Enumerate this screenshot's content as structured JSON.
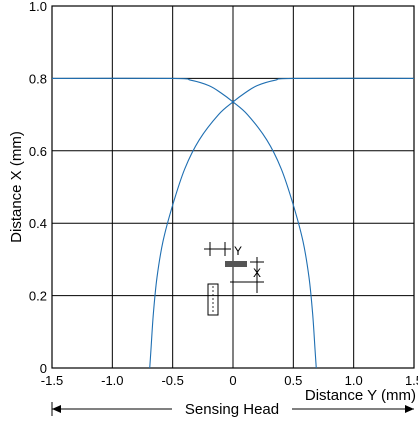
{
  "chart_data": {
    "type": "line",
    "title": "",
    "xlabel": "Distance Y (mm)",
    "ylabel": "Distance X (mm)",
    "xlim": [
      -1.5,
      1.5
    ],
    "ylim": [
      0,
      1.0
    ],
    "x_ticks": [
      -1.5,
      -1.0,
      -0.5,
      0,
      0.5,
      1.0,
      1.5
    ],
    "x_tick_labels": [
      "-1.5",
      "-1.0",
      "-0.5",
      "0",
      "0.5",
      "1.0",
      "1.5"
    ],
    "y_ticks": [
      0,
      0.2,
      0.4,
      0.6,
      0.8,
      1.0
    ],
    "y_tick_labels": [
      "0",
      "0.2",
      "0.4",
      "0.6",
      "0.8",
      "1.0"
    ],
    "grid": true,
    "series": [
      {
        "color": "#1f6fb2",
        "points": [
          [
            -0.69,
            0
          ],
          [
            -0.68,
            0.05
          ],
          [
            -0.66,
            0.15
          ],
          [
            -0.63,
            0.25
          ],
          [
            -0.58,
            0.35
          ],
          [
            -0.5,
            0.45
          ],
          [
            -0.4,
            0.55
          ],
          [
            -0.28,
            0.63
          ],
          [
            -0.12,
            0.7
          ],
          [
            0.0,
            0.735
          ],
          [
            0.1,
            0.76
          ],
          [
            0.2,
            0.78
          ],
          [
            0.35,
            0.795
          ],
          [
            0.5,
            0.8
          ],
          [
            1.5,
            0.8
          ]
        ]
      },
      {
        "color": "#1f6fb2",
        "points": [
          [
            -1.5,
            0.8
          ],
          [
            -0.5,
            0.8
          ],
          [
            -0.35,
            0.795
          ],
          [
            -0.2,
            0.78
          ],
          [
            -0.1,
            0.76
          ],
          [
            0.0,
            0.735
          ],
          [
            0.12,
            0.7
          ],
          [
            0.28,
            0.63
          ],
          [
            0.4,
            0.55
          ],
          [
            0.5,
            0.45
          ],
          [
            0.58,
            0.35
          ],
          [
            0.63,
            0.25
          ],
          [
            0.66,
            0.15
          ],
          [
            0.68,
            0.05
          ],
          [
            0.69,
            0
          ]
        ]
      }
    ],
    "inset_labels": {
      "y_axis": "Y",
      "x_axis": "X"
    },
    "footer_label": "Sensing Head"
  }
}
